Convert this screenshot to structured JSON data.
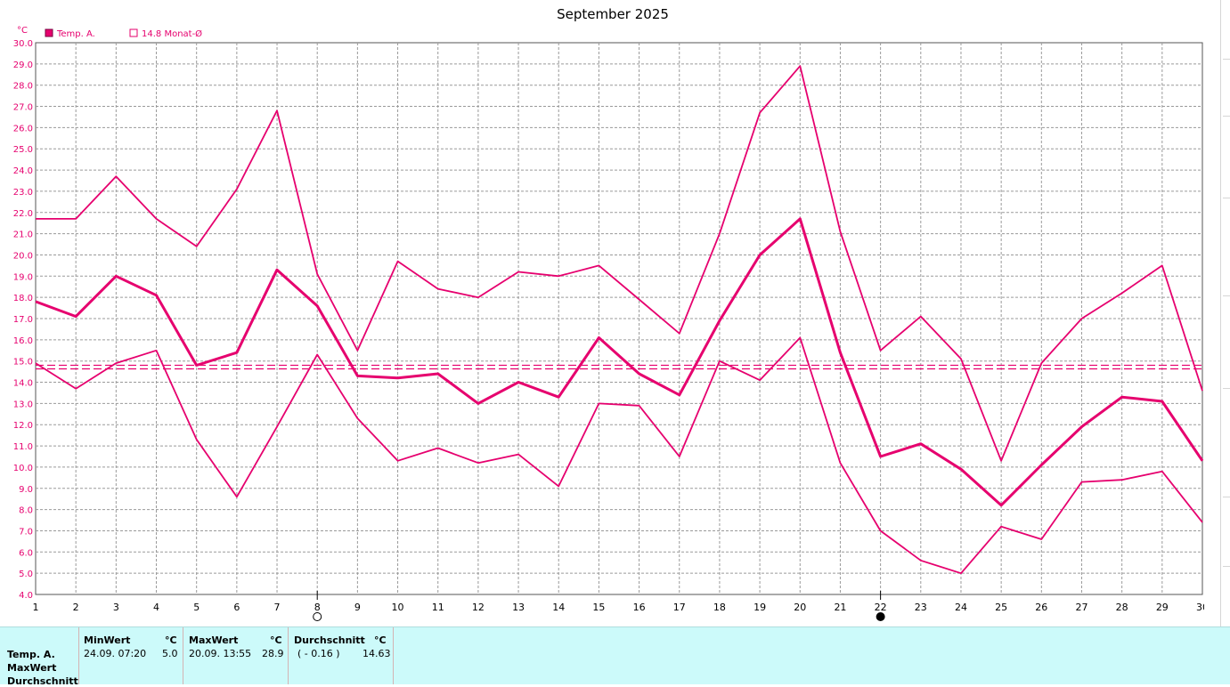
{
  "chart_data": {
    "type": "line",
    "title": "September 2025",
    "y_unit": "°C",
    "ylim": [
      4.0,
      30.0
    ],
    "y_ticks": [
      "30.0",
      "29.0",
      "28.0",
      "27.0",
      "26.0",
      "25.0",
      "24.0",
      "23.0",
      "22.0",
      "21.0",
      "20.0",
      "19.0",
      "18.0",
      "17.0",
      "16.0",
      "15.0",
      "14.0",
      "13.0",
      "12.0",
      "11.0",
      "10.0",
      "9.0",
      "8.0",
      "7.0",
      "6.0",
      "5.0",
      "4.0"
    ],
    "x": [
      1,
      2,
      3,
      4,
      5,
      6,
      7,
      8,
      9,
      10,
      11,
      12,
      13,
      14,
      15,
      16,
      17,
      18,
      19,
      20,
      21,
      22,
      23,
      24,
      25,
      26,
      27,
      28,
      29,
      30
    ],
    "grid": true,
    "legend": {
      "position": "top-left",
      "items": [
        "Temp. A.",
        "14.8 Monat-Ø"
      ]
    },
    "color": "#e6006e",
    "series": [
      {
        "role": "max",
        "values": [
          21.7,
          21.7,
          23.7,
          21.7,
          20.4,
          23.1,
          26.8,
          19.1,
          15.5,
          19.7,
          18.4,
          18.0,
          19.2,
          19.0,
          19.5,
          17.9,
          16.3,
          21.0,
          26.7,
          28.9,
          21.1,
          15.5,
          17.1,
          15.1,
          10.3,
          14.9,
          17.0,
          18.2,
          19.5,
          13.6
        ]
      },
      {
        "role": "avg",
        "name": "Temp. A.",
        "values": [
          17.8,
          17.1,
          19.0,
          18.1,
          14.8,
          15.4,
          19.3,
          17.6,
          14.3,
          14.2,
          14.4,
          13.0,
          14.0,
          13.3,
          16.1,
          14.4,
          13.4,
          16.9,
          20.0,
          21.7,
          15.4,
          10.5,
          11.1,
          9.9,
          8.2,
          10.1,
          11.9,
          13.3,
          13.1,
          10.3
        ]
      },
      {
        "role": "min",
        "values": [
          14.9,
          13.7,
          14.9,
          15.5,
          11.3,
          8.6,
          11.9,
          15.3,
          12.3,
          10.3,
          10.9,
          10.2,
          10.6,
          9.1,
          13.0,
          12.9,
          10.5,
          15.0,
          14.1,
          16.1,
          10.2,
          7.0,
          5.6,
          5.0,
          7.2,
          6.6,
          9.3,
          9.4,
          9.8,
          7.4
        ]
      }
    ],
    "reference_lines": [
      14.8,
      14.63
    ],
    "moon_phases": [
      {
        "day": 8,
        "phase": "full-moon"
      },
      {
        "day": 22,
        "phase": "new-moon"
      }
    ]
  },
  "stats": {
    "row_labels": [
      "Temp. A.",
      "MaxWert",
      "Durchschnitt"
    ],
    "min": {
      "header": "MinWert",
      "unit": "°C",
      "datetime": "24.09.  07:20",
      "value": "5.0"
    },
    "max": {
      "header": "MaxWert",
      "unit": "°C",
      "datetime": "20.09.  13:55",
      "value": "28.9"
    },
    "avg": {
      "header": "Durchschnitt",
      "unit": "°C",
      "delta": "( - 0.16 )",
      "value": "14.63"
    }
  }
}
